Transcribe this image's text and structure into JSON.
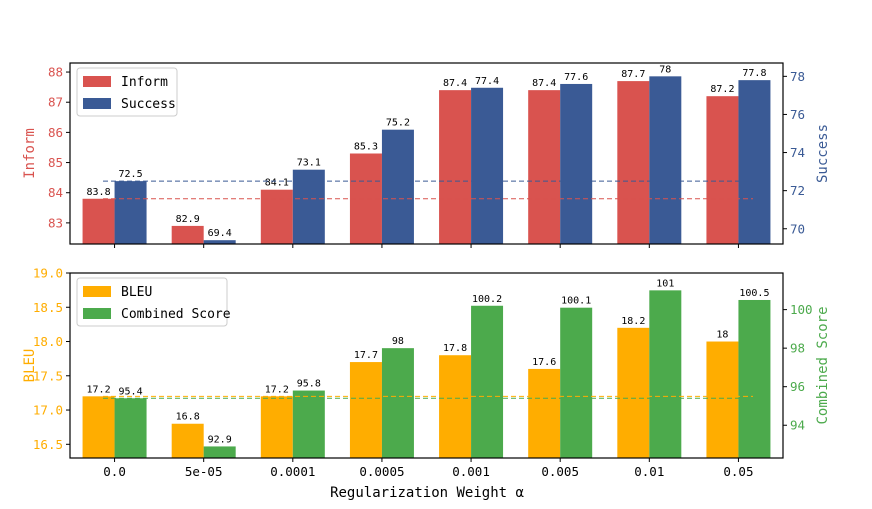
{
  "chart_data": [
    {
      "type": "bar",
      "categories": [
        "0.0",
        "5e-05",
        "0.0001",
        "0.0005",
        "0.001",
        "0.005",
        "0.01",
        "0.05"
      ],
      "series": [
        {
          "name": "Inform",
          "axis": "left",
          "color": "#d9534f",
          "values": [
            83.8,
            82.9,
            84.1,
            85.3,
            87.4,
            87.4,
            87.7,
            87.2
          ],
          "labels": [
            "83.8",
            "82.9",
            "84.1",
            "85.3",
            "87.4",
            "87.4",
            "87.7",
            "87.2"
          ]
        },
        {
          "name": "Success",
          "axis": "right",
          "color": "#3a5a95",
          "values": [
            72.5,
            69.4,
            73.1,
            75.2,
            77.4,
            77.6,
            78,
            77.8
          ],
          "labels": [
            "72.5",
            "69.4",
            "73.1",
            "75.2",
            "77.4",
            "77.6",
            "78",
            "77.8"
          ]
        }
      ],
      "ylabel_left": "Inform",
      "ylabel_right": "Success",
      "ylim_left": [
        82.3,
        88.3
      ],
      "ylim_right": [
        69.2,
        78.7
      ],
      "yticks_left": [
        "83",
        "84",
        "85",
        "86",
        "87",
        "88"
      ],
      "yticks_right": [
        "70",
        "72",
        "74",
        "76",
        "78"
      ],
      "baseline_left": 83.8,
      "baseline_right": 72.5,
      "legend": "top-left"
    },
    {
      "type": "bar",
      "categories": [
        "0.0",
        "5e-05",
        "0.0001",
        "0.0005",
        "0.001",
        "0.005",
        "0.01",
        "0.05"
      ],
      "series": [
        {
          "name": "BLEU",
          "axis": "left",
          "color": "#ffad00",
          "values": [
            17.2,
            16.8,
            17.2,
            17.7,
            17.8,
            17.6,
            18.2,
            18
          ],
          "labels": [
            "17.2",
            "16.8",
            "17.2",
            "17.7",
            "17.8",
            "17.6",
            "18.2",
            "18"
          ]
        },
        {
          "name": "Combined Score",
          "axis": "right",
          "color": "#4caa4c",
          "values": [
            95.4,
            92.9,
            95.8,
            98,
            100.2,
            100.1,
            101,
            100.5
          ],
          "labels": [
            "95.4",
            "92.9",
            "95.8",
            "98",
            "100.2",
            "100.1",
            "101",
            "100.5"
          ]
        }
      ],
      "ylabel_left": "BLEU",
      "ylabel_right": "Combined Score",
      "ylim_left": [
        16.3,
        19.0
      ],
      "ylim_right": [
        92.3,
        101.9
      ],
      "yticks_left": [
        "16.5",
        "17.0",
        "17.5",
        "18.0",
        "18.5",
        "19.0"
      ],
      "yticks_right": [
        "94",
        "96",
        "98",
        "100"
      ],
      "baseline_left": 17.2,
      "baseline_right": 95.4,
      "legend": "top-left"
    }
  ],
  "xlabel": "Regularization Weight α"
}
